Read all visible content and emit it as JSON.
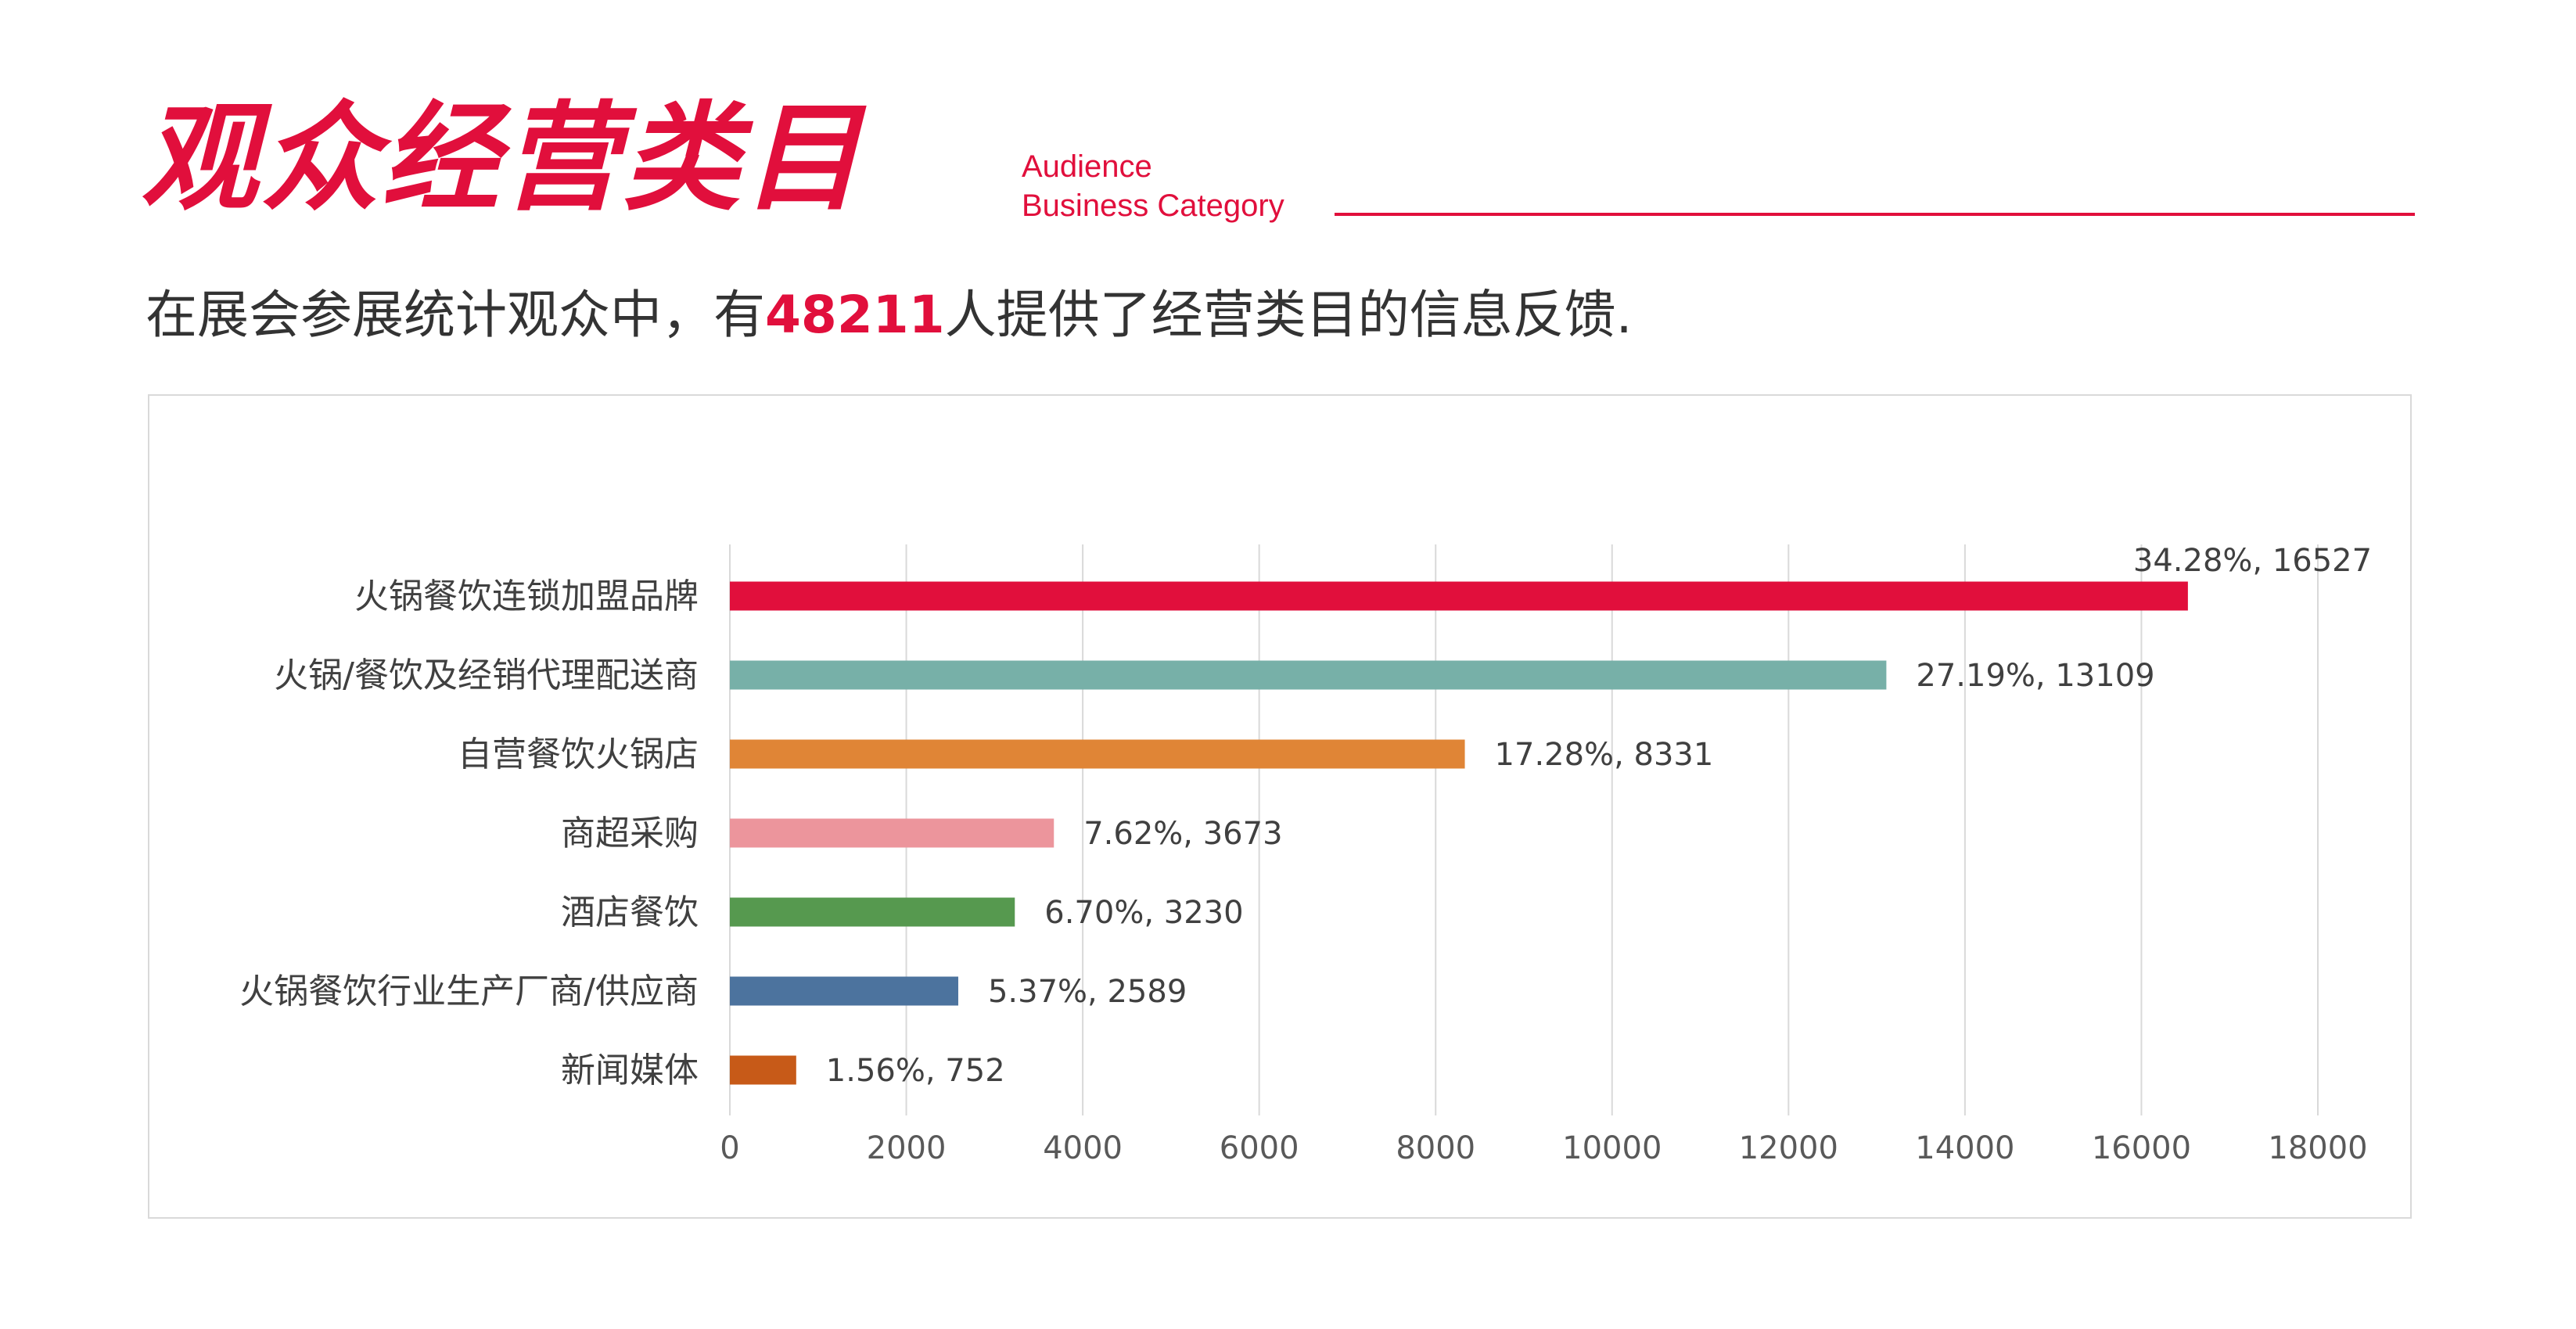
{
  "header": {
    "title_cn": "观众经营类目",
    "title_en_line1": "Audience",
    "title_en_line2": "Business Category"
  },
  "subtitle": {
    "prefix": "在展会参展统计观众中，有",
    "highlight": "48211",
    "suffix": "人提供了经营类目的信息反馈."
  },
  "colors": {
    "accent": "#e10f3c",
    "grid": "#d9d9d9",
    "text": "#404040"
  },
  "chart_data": {
    "type": "bar",
    "orientation": "horizontal",
    "categories": [
      "火锅餐饮连锁加盟品牌",
      "火锅/餐饮及经销代理配送商",
      "自营餐饮火锅店",
      "商超采购",
      "酒店餐饮",
      "火锅餐饮行业生产厂商/供应商",
      "新闻媒体"
    ],
    "values": [
      16527,
      13109,
      8331,
      3673,
      3230,
      2589,
      752
    ],
    "percentages": [
      "34.28%",
      "27.19%",
      "17.28%",
      "7.62%",
      "6.70%",
      "5.37%",
      "1.56%"
    ],
    "data_labels": [
      "34.28%, 16527",
      "27.19%, 13109",
      "17.28%, 8331",
      "7.62%, 3673",
      "6.70%, 3230",
      "5.37%, 2589",
      "1.56%, 752"
    ],
    "bar_colors": [
      "#e10f3c",
      "#77b0a8",
      "#e08536",
      "#ec959c",
      "#56994f",
      "#4c739e",
      "#c75a18"
    ],
    "x_ticks": [
      "0",
      "2000",
      "4000",
      "6000",
      "8000",
      "10000",
      "12000",
      "14000",
      "16000",
      "18000"
    ],
    "xlim": [
      0,
      18000
    ],
    "grid": "vertical",
    "legend": "none"
  }
}
